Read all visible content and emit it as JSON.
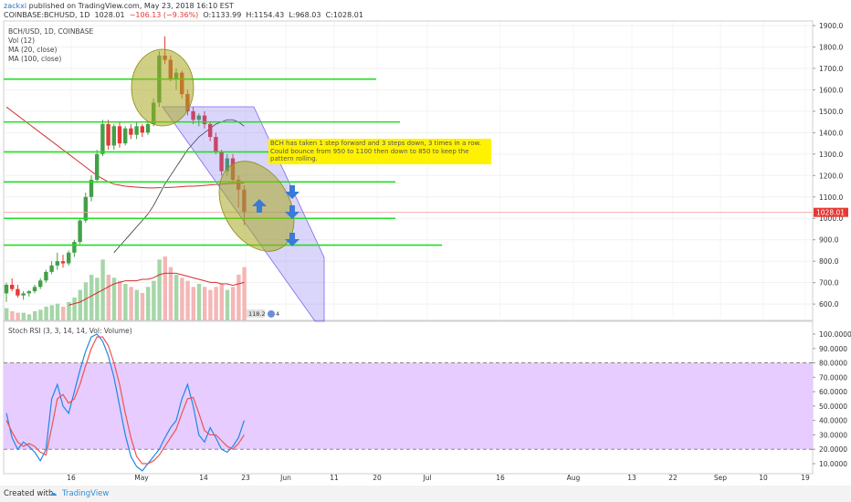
{
  "header": {
    "user": "zackxi",
    "published": "published on TradingView.com, May 23, 2018 16:10 EST",
    "symbol": "COINBASE:BCHUSD, 1D",
    "last": "1028.01",
    "change": "−106.13 (−9.36%)",
    "open": "O:1133.99",
    "high": "H:1154.43",
    "low": "L:968.03",
    "close": "C:1028.01"
  },
  "legend": {
    "l1": "BCH/USD, 1D, COINBASE",
    "l2": "Vol (12)",
    "l3": "MA (20, close)",
    "l4": "MA (100, close)"
  },
  "rsi_label": "Stoch RSI (3, 3, 14, 14, Vol: Volume)",
  "annotation": "BCH has taken 1 step forward and 3 steps down, 3 times in a row. Could bounce from 950 to 1100 then down to 850 to keep the pattern rolling.",
  "badges": {
    "vol": "118.2",
    "vol2": "4"
  },
  "price_tag": "1028.01",
  "footer": {
    "created": "Created with",
    "brand": "TradingView"
  },
  "colors": {
    "up": "#43a047",
    "down": "#e53935",
    "hline": "#22dd22",
    "channel": "#7b68ee",
    "ellipse": "#a8a820",
    "note": "#fff200",
    "rsi_band": "#e6ccff",
    "arrow": "#3a7bd5"
  },
  "chart_data": [
    {
      "type": "candlestick",
      "title": "BCH/USD, 1D, COINBASE",
      "y_ticks": [
        600,
        700,
        800,
        900,
        1000,
        1100,
        1200,
        1300,
        1400,
        1500,
        1600,
        1700,
        1800,
        1900
      ],
      "x_ticks": [
        "16",
        "May",
        "14",
        "23",
        "Jun",
        "11",
        "20",
        "Jul",
        "16",
        "Aug",
        "13",
        "22",
        "Sep",
        "10",
        "19"
      ],
      "horizontal_levels": [
        1650,
        1450,
        1310,
        1170,
        1000,
        875
      ],
      "candles": [
        {
          "o": 650,
          "h": 700,
          "l": 610,
          "c": 690
        },
        {
          "o": 690,
          "h": 720,
          "l": 660,
          "c": 670
        },
        {
          "o": 670,
          "h": 690,
          "l": 630,
          "c": 640
        },
        {
          "o": 640,
          "h": 660,
          "l": 620,
          "c": 650
        },
        {
          "o": 650,
          "h": 665,
          "l": 635,
          "c": 660
        },
        {
          "o": 660,
          "h": 690,
          "l": 650,
          "c": 680
        },
        {
          "o": 680,
          "h": 720,
          "l": 670,
          "c": 710
        },
        {
          "o": 710,
          "h": 760,
          "l": 700,
          "c": 750
        },
        {
          "o": 750,
          "h": 800,
          "l": 740,
          "c": 780
        },
        {
          "o": 780,
          "h": 840,
          "l": 760,
          "c": 800
        },
        {
          "o": 800,
          "h": 830,
          "l": 770,
          "c": 790
        },
        {
          "o": 790,
          "h": 850,
          "l": 780,
          "c": 840
        },
        {
          "o": 840,
          "h": 900,
          "l": 820,
          "c": 890
        },
        {
          "o": 890,
          "h": 1000,
          "l": 880,
          "c": 990
        },
        {
          "o": 990,
          "h": 1120,
          "l": 980,
          "c": 1100
        },
        {
          "o": 1100,
          "h": 1200,
          "l": 1080,
          "c": 1180
        },
        {
          "o": 1180,
          "h": 1320,
          "l": 1170,
          "c": 1300
        },
        {
          "o": 1300,
          "h": 1460,
          "l": 1290,
          "c": 1440
        },
        {
          "o": 1440,
          "h": 1460,
          "l": 1320,
          "c": 1340
        },
        {
          "o": 1340,
          "h": 1440,
          "l": 1320,
          "c": 1430
        },
        {
          "o": 1430,
          "h": 1450,
          "l": 1330,
          "c": 1350
        },
        {
          "o": 1350,
          "h": 1430,
          "l": 1340,
          "c": 1420
        },
        {
          "o": 1420,
          "h": 1440,
          "l": 1370,
          "c": 1390
        },
        {
          "o": 1390,
          "h": 1450,
          "l": 1370,
          "c": 1430
        },
        {
          "o": 1430,
          "h": 1440,
          "l": 1380,
          "c": 1400
        },
        {
          "o": 1400,
          "h": 1450,
          "l": 1390,
          "c": 1440
        },
        {
          "o": 1440,
          "h": 1560,
          "l": 1430,
          "c": 1540
        },
        {
          "o": 1540,
          "h": 1780,
          "l": 1520,
          "c": 1760
        },
        {
          "o": 1760,
          "h": 1850,
          "l": 1720,
          "c": 1740
        },
        {
          "o": 1740,
          "h": 1760,
          "l": 1640,
          "c": 1650
        },
        {
          "o": 1650,
          "h": 1700,
          "l": 1600,
          "c": 1680
        },
        {
          "o": 1680,
          "h": 1690,
          "l": 1560,
          "c": 1580
        },
        {
          "o": 1580,
          "h": 1600,
          "l": 1480,
          "c": 1500
        },
        {
          "o": 1500,
          "h": 1520,
          "l": 1440,
          "c": 1460
        },
        {
          "o": 1460,
          "h": 1490,
          "l": 1430,
          "c": 1480
        },
        {
          "o": 1480,
          "h": 1500,
          "l": 1420,
          "c": 1440
        },
        {
          "o": 1440,
          "h": 1450,
          "l": 1360,
          "c": 1380
        },
        {
          "o": 1380,
          "h": 1400,
          "l": 1300,
          "c": 1310
        },
        {
          "o": 1310,
          "h": 1320,
          "l": 1200,
          "c": 1220
        },
        {
          "o": 1220,
          "h": 1300,
          "l": 1200,
          "c": 1280
        },
        {
          "o": 1280,
          "h": 1300,
          "l": 1170,
          "c": 1180
        },
        {
          "o": 1180,
          "h": 1200,
          "l": 1050,
          "c": 1134
        },
        {
          "o": 1134,
          "h": 1154,
          "l": 968,
          "c": 1028
        }
      ],
      "ma20": [
        null,
        null,
        null,
        null,
        null,
        null,
        null,
        null,
        null,
        null,
        null,
        null,
        null,
        null,
        null,
        null,
        null,
        null,
        null,
        840,
        870,
        900,
        930,
        960,
        990,
        1020,
        1060,
        1110,
        1160,
        1200,
        1240,
        1280,
        1320,
        1350,
        1380,
        1400,
        1420,
        1440,
        1450,
        1460,
        1460,
        1450,
        1430
      ],
      "ma100": [
        1520,
        1500,
        1480,
        1460,
        1440,
        1420,
        1400,
        1380,
        1360,
        1340,
        1320,
        1300,
        1280,
        1260,
        1240,
        1220,
        1200,
        1185,
        1170,
        1160,
        1155,
        1150,
        1148,
        1146,
        1144,
        1142,
        1142,
        1143,
        1144,
        1145,
        1146,
        1148,
        1150,
        1150,
        1152,
        1154,
        1156,
        1158,
        1160,
        1162,
        1163,
        1164,
        1165
      ],
      "volume": [
        8,
        6,
        5,
        5,
        4,
        6,
        7,
        9,
        10,
        11,
        9,
        12,
        15,
        20,
        25,
        30,
        28,
        40,
        30,
        28,
        26,
        24,
        22,
        20,
        18,
        22,
        26,
        40,
        42,
        35,
        30,
        28,
        26,
        22,
        24,
        22,
        20,
        22,
        24,
        20,
        22,
        30,
        35
      ],
      "volume_ma": [
        null,
        null,
        null,
        null,
        null,
        null,
        null,
        null,
        null,
        null,
        null,
        10,
        11,
        12,
        14,
        16,
        18,
        20,
        22,
        24,
        25,
        26,
        26,
        26,
        27,
        27,
        28,
        30,
        31,
        31,
        31,
        30,
        29,
        28,
        27,
        26,
        25,
        25,
        24,
        24,
        23,
        24,
        25
      ]
    },
    {
      "type": "line",
      "title": "Stoch RSI (3, 3, 14, 14, Vol: Volume)",
      "y_ticks": [
        10,
        20,
        30,
        40,
        50,
        60,
        70,
        80,
        90,
        100
      ],
      "band": [
        20,
        80
      ],
      "series": [
        {
          "values": [
            45,
            28,
            20,
            25,
            22,
            18,
            12,
            20,
            55,
            65,
            50,
            45,
            60,
            75,
            88,
            98,
            100,
            95,
            85,
            70,
            50,
            30,
            15,
            8,
            5,
            10,
            15,
            20,
            28,
            35,
            40,
            55,
            65,
            50,
            30,
            25,
            35,
            28,
            20,
            18,
            22,
            28,
            40
          ]
        },
        {
          "values": [
            40,
            32,
            25,
            22,
            24,
            22,
            18,
            16,
            35,
            55,
            58,
            52,
            55,
            65,
            78,
            90,
            98,
            98,
            92,
            80,
            65,
            45,
            28,
            15,
            10,
            10,
            12,
            16,
            22,
            28,
            34,
            45,
            55,
            56,
            45,
            33,
            30,
            30,
            26,
            22,
            20,
            24,
            30
          ]
        }
      ]
    }
  ]
}
